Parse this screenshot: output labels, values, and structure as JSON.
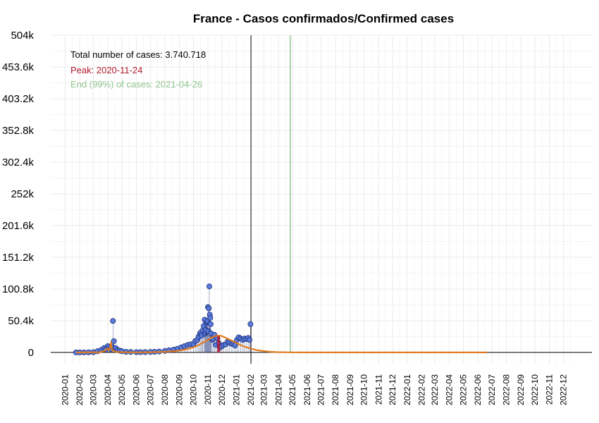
{
  "chart_data": {
    "type": "scatter",
    "title": "France - Casos confirmados/Confirmed cases",
    "xlabel": "",
    "ylabel": "",
    "y_ticks": [
      "504k",
      "453.6k",
      "403.2k",
      "352.8k",
      "302.4k",
      "252k",
      "201.6k",
      "151.2k",
      "100.8k",
      "50.4k",
      "0"
    ],
    "y_tick_values": [
      504000,
      453600,
      403200,
      352800,
      302400,
      252000,
      201600,
      151200,
      100800,
      50400,
      0
    ],
    "ylim": [
      -18000,
      504000
    ],
    "x_ticks": [
      "2020-01",
      "2020-02",
      "2020-03",
      "2020-04",
      "2020-05",
      "2020-06",
      "2020-07",
      "2020-08",
      "2020-09",
      "2020-10",
      "2020-11",
      "2020-12",
      "2021-01",
      "2021-02",
      "2021-03",
      "2021-04",
      "2021-05",
      "2021-06",
      "2021-07",
      "2021-08",
      "2021-09",
      "2021-10",
      "2021-11",
      "2021-12",
      "2022-01",
      "2022-02",
      "2022-03",
      "2022-04",
      "2022-05",
      "2022-06",
      "2022-07",
      "2022-08",
      "2022-09",
      "2022-10",
      "2022-11",
      "2022-12"
    ],
    "xlim": [
      "2019-12-01",
      "2023-01-31"
    ],
    "grid": true,
    "annotations": {
      "total": "Total number of cases: 3.740.718",
      "peak": "Peak: 2020-11-24",
      "end": "End (99%) of cases: 2021-04-26"
    },
    "colors": {
      "points_fill": "#5b7bd8",
      "points_stroke": "#1a2e7a",
      "fit_line": "#e07b20",
      "peak": "#b0182e",
      "end_line": "#8fc48f",
      "cutoff_line": "#000000",
      "grid": "#ebebeb"
    },
    "cutoff_date": "2021-02-01",
    "end_date": "2021-04-26",
    "peak_date": "2020-11-24",
    "series": [
      {
        "type": "scatter",
        "x": [
          "2020-01-24",
          "2020-02-01",
          "2020-02-10",
          "2020-02-20",
          "2020-03-01",
          "2020-03-10",
          "2020-03-18",
          "2020-03-24",
          "2020-03-28",
          "2020-04-01",
          "2020-04-04",
          "2020-04-07",
          "2020-04-10",
          "2020-04-12",
          "2020-04-14",
          "2020-04-18",
          "2020-04-22",
          "2020-04-26",
          "2020-05-01",
          "2020-05-10",
          "2020-05-20",
          "2020-06-01",
          "2020-06-10",
          "2020-06-20",
          "2020-07-01",
          "2020-07-10",
          "2020-07-20",
          "2020-08-01",
          "2020-08-10",
          "2020-08-20",
          "2020-08-28",
          "2020-09-05",
          "2020-09-12",
          "2020-09-19",
          "2020-09-25",
          "2020-10-01",
          "2020-10-05",
          "2020-10-09",
          "2020-10-12",
          "2020-10-15",
          "2020-10-17",
          "2020-10-19",
          "2020-10-21",
          "2020-10-23",
          "2020-10-25",
          "2020-10-26",
          "2020-10-27",
          "2020-10-28",
          "2020-10-29",
          "2020-10-30",
          "2020-10-31",
          "2020-11-01",
          "2020-11-02",
          "2020-11-03",
          "2020-11-04",
          "2020-11-05",
          "2020-11-06",
          "2020-11-07",
          "2020-11-08",
          "2020-11-10",
          "2020-11-12",
          "2020-11-15",
          "2020-11-18",
          "2020-11-21",
          "2020-11-24",
          "2020-11-27",
          "2020-12-01",
          "2020-12-05",
          "2020-12-09",
          "2020-12-13",
          "2020-12-17",
          "2020-12-21",
          "2020-12-25",
          "2020-12-29",
          "2021-01-02",
          "2021-01-06",
          "2021-01-10",
          "2021-01-14",
          "2021-01-18",
          "2021-01-22",
          "2021-01-26",
          "2021-01-29",
          "2021-01-31"
        ],
        "y": [
          0,
          0,
          0,
          200,
          500,
          2000,
          4000,
          7000,
          5000,
          10000,
          7500,
          5000,
          9000,
          50000,
          18000,
          7000,
          4000,
          3000,
          2000,
          1000,
          800,
          500,
          500,
          600,
          800,
          1000,
          1500,
          2500,
          3500,
          4500,
          6000,
          8000,
          10000,
          12000,
          13000,
          13000,
          18000,
          20000,
          25000,
          30000,
          32000,
          27000,
          35000,
          42000,
          52000,
          30000,
          33000,
          36000,
          47000,
          49000,
          50000,
          72000,
          34000,
          70000,
          105000,
          60000,
          55000,
          45000,
          30000,
          20000,
          22000,
          28000,
          12000,
          22000,
          15000,
          8000,
          10000,
          12000,
          13000,
          17000,
          16000,
          14000,
          13000,
          11000,
          20000,
          24000,
          22000,
          20000,
          22000,
          21000,
          23000,
          20000,
          45000
        ]
      },
      {
        "type": "line",
        "name": "",
        "x": [
          "2020-01-24",
          "2020-03-15",
          "2020-03-25",
          "2020-03-30",
          "2020-04-04",
          "2020-04-08",
          "2020-04-10",
          "2020-04-14",
          "2020-04-17",
          "2020-04-20",
          "2020-05-01",
          "2020-05-15",
          "2020-06-01",
          "2020-07-01",
          "2020-08-01",
          "2020-08-20",
          "2020-09-01",
          "2020-09-15",
          "2020-10-01",
          "2020-10-10",
          "2020-10-20",
          "2020-11-01",
          "2020-11-10",
          "2020-11-17",
          "2020-11-24",
          "2020-12-01",
          "2020-12-10",
          "2020-12-20",
          "2021-01-01",
          "2021-01-15",
          "2021-02-01",
          "2021-02-15",
          "2021-03-01",
          "2021-03-15",
          "2021-04-01",
          "2021-04-26",
          "2021-06-01",
          "2022-01-01",
          "2022-06-20"
        ],
        "y": [
          0,
          300,
          2500,
          6000,
          3500,
          16000,
          4000,
          2500,
          1500,
          800,
          500,
          300,
          200,
          400,
          1000,
          2000,
          3000,
          5000,
          8000,
          11000,
          15000,
          20000,
          24000,
          26000,
          27000,
          26000,
          23000,
          19500,
          15000,
          10000,
          6000,
          3500,
          2000,
          1000,
          500,
          100,
          0,
          0,
          0
        ]
      }
    ]
  }
}
